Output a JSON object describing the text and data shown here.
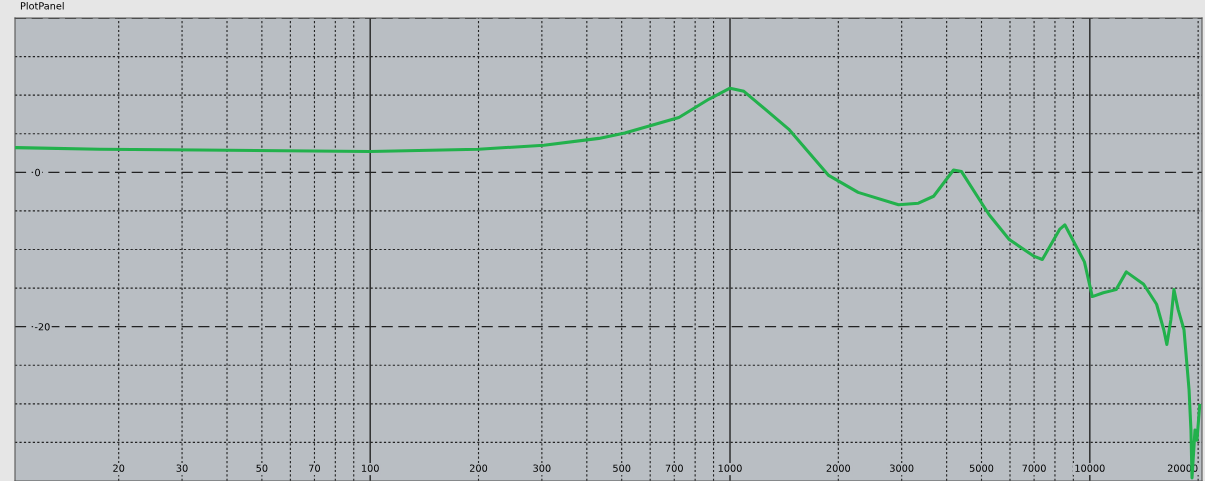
{
  "chart_data": {
    "type": "line",
    "title": "PlotPanel",
    "log": "x",
    "grid": true,
    "marker": "none",
    "line_style": "solid",
    "xlim": [
      10.3,
      20500
    ],
    "ylim": [
      -40,
      20
    ],
    "xticks": [
      20,
      30,
      {
        "value": 40,
        "label": null
      },
      50,
      {
        "value": 60,
        "label": null
      },
      70,
      {
        "value": 80,
        "label": null
      },
      {
        "value": 90,
        "label": null
      },
      100,
      200,
      300,
      {
        "value": 400,
        "label": null
      },
      500,
      {
        "value": 600,
        "label": null
      },
      700,
      {
        "value": 800,
        "label": null
      },
      {
        "value": 900,
        "label": null
      },
      1000,
      2000,
      3000,
      {
        "value": 4000,
        "label": null
      },
      5000,
      {
        "value": 6000,
        "label": null
      },
      7000,
      {
        "value": 8000,
        "label": null
      },
      {
        "value": 9000,
        "label": null
      },
      10000,
      20000
    ],
    "yticks": [
      {
        "value": 20,
        "label": null
      },
      {
        "value": 15,
        "label": null
      },
      {
        "value": 10,
        "label": null
      },
      {
        "value": 5,
        "label": null
      },
      0,
      {
        "value": -5,
        "label": null
      },
      {
        "value": -10,
        "label": null
      },
      {
        "value": -15,
        "label": null
      },
      -20,
      {
        "value": -25,
        "label": null
      },
      {
        "value": -30,
        "label": null
      },
      {
        "value": -35,
        "label": null
      }
    ],
    "x": [
      10.4,
      17.7,
      33.5,
      100,
      200,
      304,
      432,
      510,
      721,
      875,
      1000,
      1093,
      1455,
      1880,
      2270,
      2940,
      3340,
      3680,
      4180,
      4400,
      5250,
      5970,
      7010,
      7380,
      8240,
      8520,
      9660,
      10160,
      10900,
      11830,
      12630,
      14110,
      15330,
      16050,
      16370,
      16800,
      17130,
      17600,
      18270,
      18870,
      19100,
      19230,
      19600,
      19850,
      20200
    ],
    "series": [
      {
        "color": "#22b14c",
        "values": [
          3.2,
          3.0,
          2.9,
          2.7,
          3.0,
          3.5,
          4.4,
          5.1,
          7.1,
          9.5,
          10.9,
          10.5,
          5.6,
          -0.4,
          -2.6,
          -4.2,
          -4.0,
          -3.1,
          0.3,
          0.1,
          -5.5,
          -8.7,
          -10.9,
          -11.3,
          -7.4,
          -6.8,
          -11.6,
          -16.1,
          -15.6,
          -15.2,
          -12.9,
          -14.5,
          -17.1,
          -20.4,
          -22.3,
          -19.1,
          -15.2,
          -17.8,
          -20.4,
          -28.2,
          -33.4,
          -39.6,
          -33.4,
          -34.7,
          -30.2
        ]
      }
    ]
  }
}
